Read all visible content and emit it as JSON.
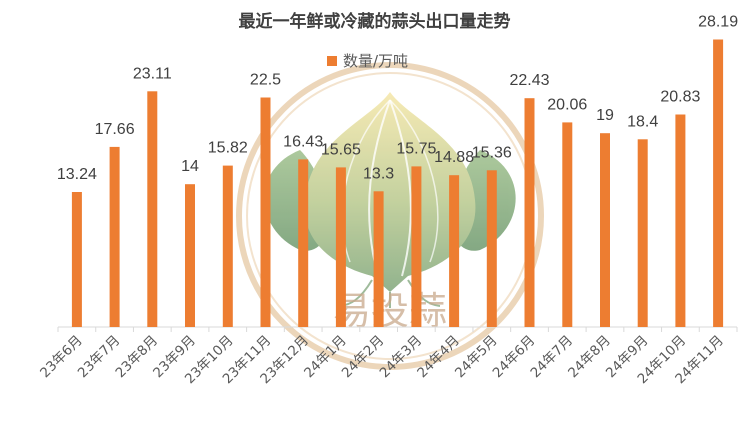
{
  "chart_data": {
    "type": "bar",
    "title": "最近一年鲜或冷藏的蒜头出口量走势",
    "categories": [
      "23年6月",
      "23年7月",
      "23年8月",
      "23年9月",
      "23年10月",
      "23年11月",
      "23年12月",
      "24年1月",
      "24年2月",
      "24年3月",
      "24年4月",
      "24年5月",
      "24年6月",
      "24年7月",
      "24年8月",
      "24年9月",
      "24年10月",
      "24年11月"
    ],
    "series": [
      {
        "name": "数量/万吨",
        "values": [
          13.24,
          17.66,
          23.11,
          14,
          15.82,
          22.5,
          16.43,
          15.65,
          13.3,
          15.75,
          14.88,
          15.36,
          22.43,
          20.06,
          19,
          18.4,
          20.83,
          28.19
        ],
        "labels": [
          "13.24",
          "17.66",
          "23.11",
          "14",
          "15.82",
          "22.5",
          "16.43",
          "15.65",
          "13.3",
          "15.75",
          "14.88",
          "15.36",
          "22.43",
          "20.06",
          "19",
          "18.4",
          "20.83",
          "28.19"
        ]
      }
    ],
    "ylim": [
      0,
      30
    ],
    "grid": false,
    "legend": "top-center",
    "color": "#ed7d31"
  },
  "watermark": {
    "text": "易投蒜",
    "icon": "garlic-logo-icon"
  }
}
